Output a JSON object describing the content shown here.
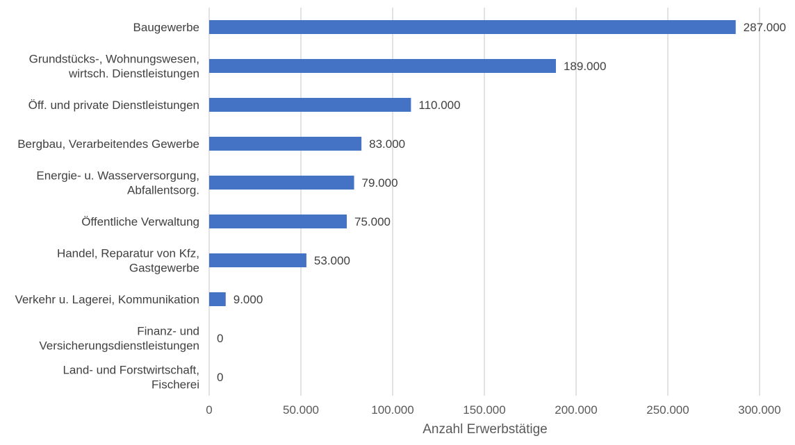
{
  "chart_data": {
    "type": "bar",
    "orientation": "horizontal",
    "categories": [
      [
        "Baugewerbe"
      ],
      [
        "Grundstücks-, Wohnungswesen,",
        "wirtsch. Dienstleistungen"
      ],
      [
        "Öff. und private Dienstleistungen"
      ],
      [
        "Bergbau, Verarbeitendes Gewerbe"
      ],
      [
        "Energie- u. Wasserversorgung,",
        "Abfallentsorg."
      ],
      [
        "Öffentliche Verwaltung"
      ],
      [
        "Handel, Reparatur von Kfz,",
        "Gastgewerbe"
      ],
      [
        "Verkehr u. Lagerei, Kommunikation"
      ],
      [
        "Finanz- und",
        "Versicherungsdienstleistungen"
      ],
      [
        "Land- und Forstwirtschaft,",
        "Fischerei"
      ]
    ],
    "values": [
      287000,
      189000,
      110000,
      83000,
      79000,
      75000,
      53000,
      9000,
      0,
      0
    ],
    "value_labels": [
      "287.000",
      "189.000",
      "110.000",
      "83.000",
      "79.000",
      "75.000",
      "53.000",
      "9.000",
      "0",
      "0"
    ],
    "xlabel": "Anzahl Erwerbstätige",
    "ylabel": "",
    "xlim": [
      0,
      300000
    ],
    "xticks": [
      0,
      50000,
      100000,
      150000,
      200000,
      250000,
      300000
    ],
    "xtick_labels": [
      "0",
      "50.000",
      "100.000",
      "150.000",
      "200.000",
      "250.000",
      "300.000"
    ],
    "grid": true,
    "legend": "none",
    "bar_color": "#4472c4"
  }
}
